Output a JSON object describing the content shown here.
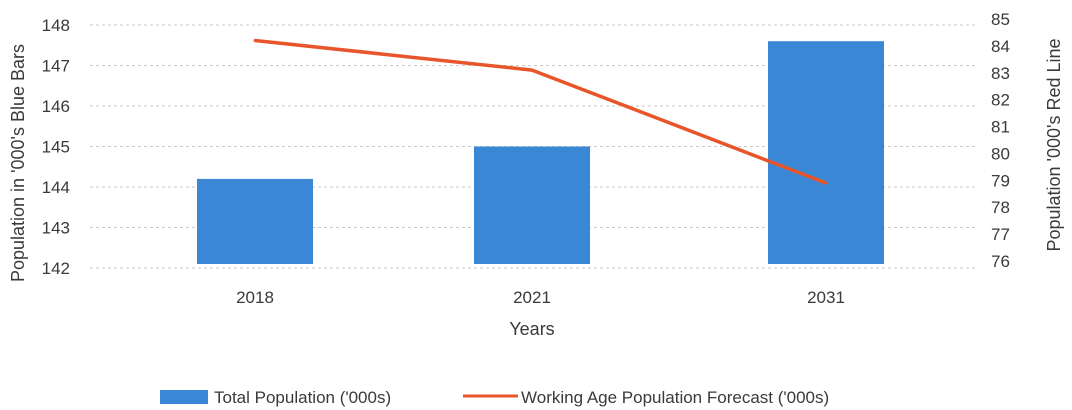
{
  "chart_data": {
    "type": "bar",
    "categories": [
      "2018",
      "2021",
      "2031"
    ],
    "series": [
      {
        "name": "Total Population ('000s)",
        "type": "bar",
        "axis": "left",
        "values": [
          144.2,
          145.0,
          147.6
        ],
        "color": "#3a87d6"
      },
      {
        "name": "Working Age Population Forecast ('000s)",
        "type": "line",
        "axis": "right",
        "values": [
          84.2,
          83.1,
          78.9
        ],
        "color": "#e8552b"
      }
    ],
    "xlabel": "Years",
    "ylabel": "Population in '000's Blue Bars",
    "y2label": "Population '000's Red Line",
    "ylim": [
      142,
      148
    ],
    "y2lim": [
      76,
      85
    ],
    "yticks": [
      "142",
      "143",
      "144",
      "145",
      "146",
      "147",
      "148"
    ],
    "y2ticks": [
      "76",
      "77",
      "78",
      "79",
      "80",
      "81",
      "82",
      "83",
      "84",
      "85"
    ],
    "grid": true,
    "legend": "bottom"
  }
}
